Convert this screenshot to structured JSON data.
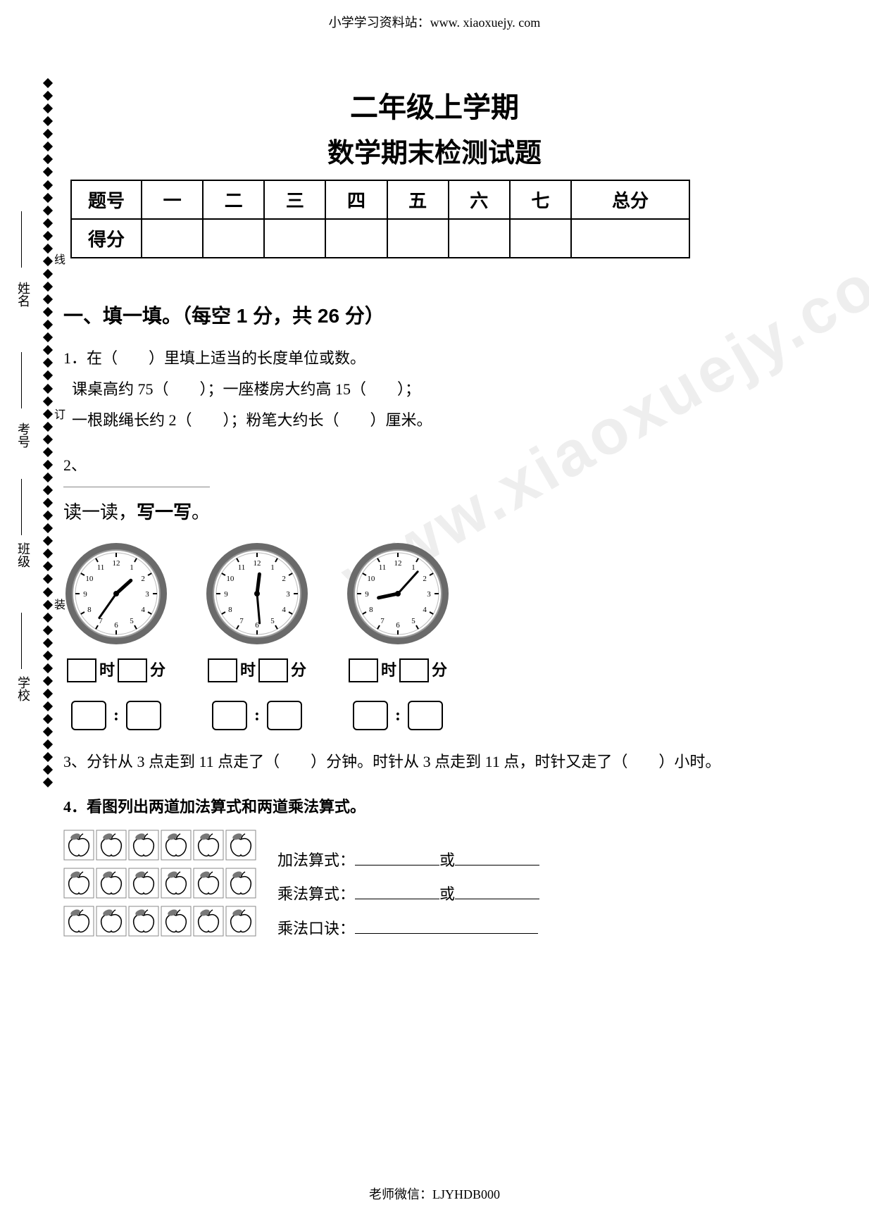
{
  "header_url": "小学学习资料站：www. xiaoxuejy. com",
  "footer": "老师微信：LJYHDB000",
  "watermark": "www.xiaoxuejy.com",
  "title_line1": "二年级上学期",
  "title_line2": "数学期末检测试题",
  "score_table": {
    "row1": [
      "题号",
      "一",
      "二",
      "三",
      "四",
      "五",
      "六",
      "七",
      "总分"
    ],
    "row2_label": "得分"
  },
  "binding": {
    "labels": [
      "学校",
      "班级",
      "考号",
      "姓名"
    ],
    "chars": [
      "装",
      "订",
      "线"
    ]
  },
  "section1_heading": "一、填一填。（每空 1 分，共 26 分）",
  "q1": {
    "lead": "1．在（　　）里填上适当的长度单位或数。",
    "line1": "课桌高约 75（　　）；一座楼房大约高 15（　　）；",
    "line2": "一根跳绳长约 2（　　）；粉笔大约长（　　）厘米。"
  },
  "q2": {
    "num": "2、",
    "title_prefix": "读一读，",
    "title_bold": "写一写",
    "title_suffix": "。",
    "clocks": [
      {
        "hour_angle": 48,
        "min_angle": 215
      },
      {
        "hour_angle": 7,
        "min_angle": 175
      },
      {
        "hour_angle": 258,
        "min_angle": 42
      }
    ],
    "label_hour": "时",
    "label_min": "分"
  },
  "q3": "3、分针从 3 点走到 11 点走了（　　）分钟。时针从 3 点走到 11 点，时针又走了（　　）小时。",
  "q4": {
    "lead": "4．看图列出两道加法算式和两道乘法算式。",
    "rows": 3,
    "cols": 6,
    "line_add": "加法算式：",
    "line_mul": "乘法算式：",
    "line_rhyme": "乘法口诀：",
    "or": "或"
  },
  "colors": {
    "clock_rim": "#6a6a6a",
    "clock_face": "#ffffff",
    "clock_inner_ring": "#9a9a9a",
    "hand": "#000000"
  }
}
